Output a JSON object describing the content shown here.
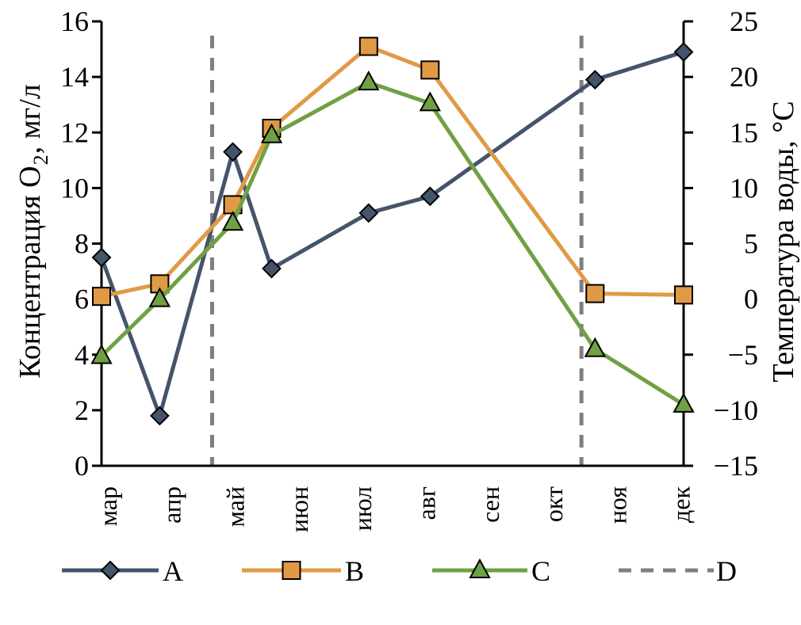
{
  "chart_data": {
    "type": "line",
    "title": "",
    "xlabel": "",
    "ylabel": "Концентрация O₂, мг/л",
    "ylabel_parts": {
      "main": "Концентрация O",
      "sub": "2",
      "rest": ", мг/л"
    },
    "y2label": "Температура воды, °C",
    "ylim": [
      0,
      16
    ],
    "y2lim": [
      -15,
      25
    ],
    "yticks": [
      "0",
      "2",
      "4",
      "6",
      "8",
      "10",
      "12",
      "14",
      "16"
    ],
    "y2ticks": [
      "−15",
      "−10",
      "−5",
      "0",
      "5",
      "10",
      "15",
      "20",
      "25"
    ],
    "categories": [
      "мар",
      "апр",
      "май",
      "июн",
      "июл",
      "авг",
      "сен",
      "окт",
      "ноя",
      "дек"
    ],
    "x_note": "x in months since March (0 = мар, 9 = дек)",
    "x": [
      0,
      0.9,
      2.03,
      2.63,
      4.13,
      5.08,
      7.63,
      9.0
    ],
    "series": [
      {
        "name": "A",
        "color": "#44546a",
        "marker": "diamond",
        "values": [
          7.5,
          1.8,
          11.3,
          7.1,
          9.1,
          9.7,
          13.9,
          14.9
        ]
      },
      {
        "name": "B",
        "color": "#e09a46",
        "marker": "square",
        "values": [
          6.1,
          6.55,
          9.4,
          12.15,
          15.1,
          14.25,
          6.2,
          6.15
        ]
      },
      {
        "name": "C",
        "color": "#70a044",
        "marker": "triangle",
        "values": [
          3.95,
          6.0,
          8.75,
          11.9,
          13.8,
          13.05,
          4.2,
          2.2
        ]
      }
    ],
    "vlines": {
      "name": "D",
      "color": "#7f7f7f",
      "x": [
        1.71,
        7.42
      ]
    },
    "legend_position": "bottom",
    "grid": false
  }
}
